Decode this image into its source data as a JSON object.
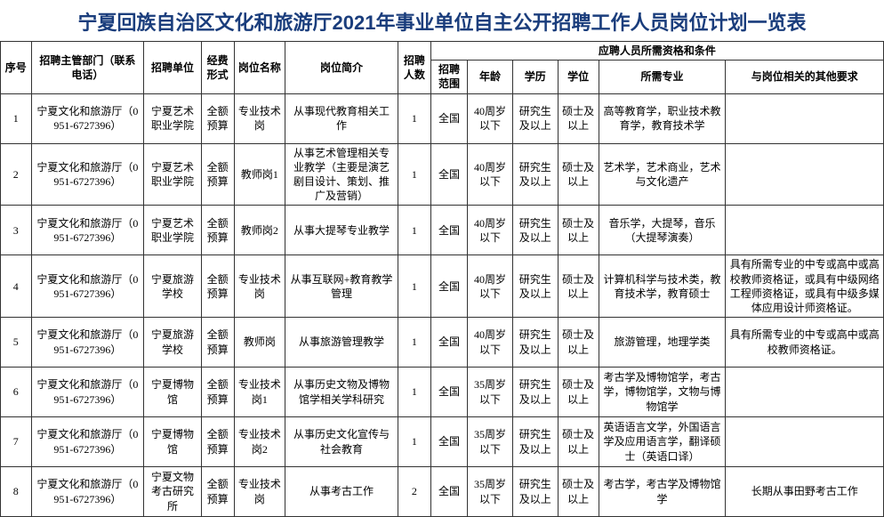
{
  "title": "宁夏回族自治区文化和旅游厅2021年事业单位自主公开招聘工作人员岗位计划一览表",
  "headers": {
    "seq": "序号",
    "dept": "招聘主管部门（联系电话）",
    "unit": "招聘单位",
    "fund": "经费形式",
    "pos": "岗位名称",
    "desc": "岗位简介",
    "count": "招聘人数",
    "req_group": "应聘人员所需资格和条件",
    "scope": "招聘范围",
    "age": "年龄",
    "edu": "学历",
    "deg": "学位",
    "major": "所需专业",
    "other": "与岗位相关的其他要求"
  },
  "rows": [
    {
      "seq": "1",
      "dept": "宁夏文化和旅游厅（0951-6727396）",
      "unit": "宁夏艺术职业学院",
      "fund": "全额预算",
      "pos": "专业技术岗",
      "desc": "从事现代教育相关工作",
      "count": "1",
      "scope": "全国",
      "age": "40周岁以下",
      "edu": "研究生及以上",
      "deg": "硕士及以上",
      "major": "高等教育学，职业技术教育学，教育技术学",
      "other": ""
    },
    {
      "seq": "2",
      "dept": "宁夏文化和旅游厅（0951-6727396）",
      "unit": "宁夏艺术职业学院",
      "fund": "全额预算",
      "pos": "教师岗1",
      "desc": "从事艺术管理相关专业教学（主要是演艺剧目设计、策划、推广及营销）",
      "count": "1",
      "scope": "全国",
      "age": "40周岁以下",
      "edu": "研究生及以上",
      "deg": "硕士及以上",
      "major": "艺术学，艺术商业，艺术与文化遗产",
      "other": ""
    },
    {
      "seq": "3",
      "dept": "宁夏文化和旅游厅（0951-6727396）",
      "unit": "宁夏艺术职业学院",
      "fund": "全额预算",
      "pos": "教师岗2",
      "desc": "从事大提琴专业教学",
      "count": "1",
      "scope": "全国",
      "age": "40周岁以下",
      "edu": "研究生及以上",
      "deg": "硕士及以上",
      "major": "音乐学，大提琴，音乐（大提琴演奏）",
      "other": ""
    },
    {
      "seq": "4",
      "dept": "宁夏文化和旅游厅（0951-6727396）",
      "unit": "宁夏旅游学校",
      "fund": "全额预算",
      "pos": "专业技术岗",
      "desc": "从事互联网+教育教学管理",
      "count": "1",
      "scope": "全国",
      "age": "40周岁以下",
      "edu": "研究生及以上",
      "deg": "硕士及以上",
      "major": "计算机科学与技术类，教育技术学，教育硕士",
      "other": "具有所需专业的中专或高中或高校教师资格证，或具有中级网络工程师资格证，或具有中级多媒体应用设计师资格证。"
    },
    {
      "seq": "5",
      "dept": "宁夏文化和旅游厅（0951-6727396）",
      "unit": "宁夏旅游学校",
      "fund": "全额预算",
      "pos": "教师岗",
      "desc": "从事旅游管理教学",
      "count": "1",
      "scope": "全国",
      "age": "40周岁以下",
      "edu": "研究生及以上",
      "deg": "硕士及以上",
      "major": "旅游管理，地理学类",
      "other": "具有所需专业的中专或高中或高校教师资格证。"
    },
    {
      "seq": "6",
      "dept": "宁夏文化和旅游厅（0951-6727396）",
      "unit": "宁夏博物馆",
      "fund": "全额预算",
      "pos": "专业技术岗1",
      "desc": "从事历史文物及博物馆学相关学科研究",
      "count": "1",
      "scope": "全国",
      "age": "35周岁以下",
      "edu": "研究生及以上",
      "deg": "硕士及以上",
      "major": "考古学及博物馆学，考古学，博物馆学，文物与博物馆学",
      "other": ""
    },
    {
      "seq": "7",
      "dept": "宁夏文化和旅游厅（0951-6727396）",
      "unit": "宁夏博物馆",
      "fund": "全额预算",
      "pos": "专业技术岗2",
      "desc": "从事历史文化宣传与社会教育",
      "count": "1",
      "scope": "全国",
      "age": "35周岁以下",
      "edu": "研究生及以上",
      "deg": "硕士及以上",
      "major": "英语语言文学，外国语言学及应用语言学，翻译硕士（英语口译）",
      "other": ""
    },
    {
      "seq": "8",
      "dept": "宁夏文化和旅游厅（0951-6727396）",
      "unit": "宁夏文物考古研究所",
      "fund": "全额预算",
      "pos": "专业技术岗",
      "desc": "从事考古工作",
      "count": "2",
      "scope": "全国",
      "age": "35周岁以下",
      "edu": "研究生及以上",
      "deg": "硕士及以上",
      "major": "考古学，考古学及博物馆学",
      "other": "长期从事田野考古工作"
    }
  ]
}
